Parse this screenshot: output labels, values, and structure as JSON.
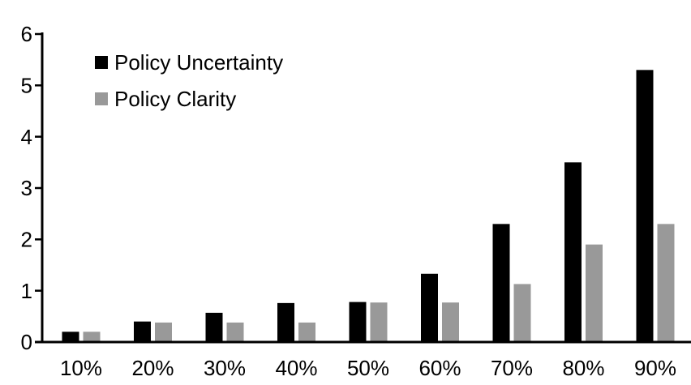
{
  "chart_data": {
    "type": "bar",
    "title": "",
    "xlabel": "",
    "ylabel": "",
    "categories": [
      "10%",
      "20%",
      "30%",
      "40%",
      "50%",
      "60%",
      "70%",
      "80%",
      "90%"
    ],
    "series": [
      {
        "name": "Policy Uncertainty",
        "color": "#000000",
        "values": [
          0.2,
          0.4,
          0.57,
          0.76,
          0.78,
          1.33,
          2.3,
          3.5,
          5.3
        ]
      },
      {
        "name": "Policy Clarity",
        "color": "#999999",
        "values": [
          0.2,
          0.38,
          0.38,
          0.38,
          0.77,
          0.77,
          1.13,
          1.9,
          2.3
        ]
      }
    ],
    "ylim": [
      0,
      6
    ],
    "yticks": [
      0,
      1,
      2,
      3,
      4,
      5,
      6
    ],
    "grid": false,
    "legend_position": "top-left",
    "axis_color": "#000000",
    "background": "#ffffff"
  }
}
